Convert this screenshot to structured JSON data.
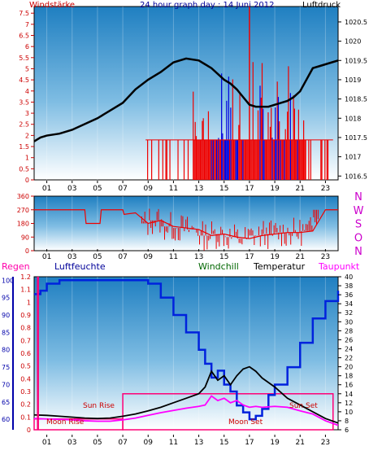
{
  "colors": {
    "wind": "#ee0000",
    "gust_blue": "#0000dd",
    "pressure": "#000000",
    "humidity": "#0022dd",
    "temperature": "#000000",
    "dewpoint": "#ff00ff",
    "windchill": "#006600",
    "rain": "#ff0077",
    "axis_red": "#cc0000",
    "axis_blue": "#0000aa",
    "bg_top": "#1f7fc1",
    "bg_bottom": "#ffffff"
  },
  "labels": {
    "title": "24 hour graph day : 14 Juni 2012",
    "windstaerke": "Windstärke",
    "luftdruck": "Luftdruck",
    "regen": "Regen",
    "luftfeuchte": "Luftfeuchte",
    "windchill": "Windchill",
    "temperatur": "Temperatur",
    "taupunkt": "Taupunkt",
    "sun_rise": "Sun Rise",
    "sun_set": "Sun Set",
    "moon_rise": "Moon Rise",
    "moon_set": "Moon Set",
    "compass": [
      "N",
      "W",
      "S",
      "O",
      "N"
    ]
  },
  "chart_data": [
    {
      "id": "wind-pressure",
      "type": "line",
      "x_ticks": [
        "01",
        "03",
        "05",
        "07",
        "09",
        "11",
        "13",
        "15",
        "17",
        "19",
        "21",
        "23"
      ],
      "y_left": {
        "label": "Windstärke",
        "ticks": [
          "0",
          "0.5",
          "1",
          "1.5",
          "2",
          "2.5",
          "3",
          "3.5",
          "4",
          "4.5",
          "5",
          "5.5",
          "6",
          "6.5",
          "7",
          "7.5"
        ],
        "ylim": [
          0,
          7.8
        ]
      },
      "y_right": {
        "label": "Luftdruck",
        "ticks": [
          "1016.5",
          "1017",
          "1017.5",
          "1018",
          "1018.5",
          "1019",
          "1019.5",
          "1020",
          "1020.5"
        ],
        "ylim": [
          1016.4,
          1020.9
        ]
      },
      "series": [
        {
          "name": "Luftdruck",
          "axis": "right",
          "x": [
            0,
            0.5,
            1,
            2,
            3,
            4,
            5,
            6,
            7,
            8,
            9,
            10,
            11,
            12,
            13,
            13.5,
            14,
            14.5,
            15,
            15.5,
            16,
            16.5,
            17,
            17.5,
            18,
            18.5,
            19,
            19.5,
            20,
            20.5,
            21,
            21.5,
            22,
            22.5,
            23,
            23.5,
            24
          ],
          "y": [
            1017.4,
            1017.5,
            1017.55,
            1017.6,
            1017.7,
            1017.85,
            1018.0,
            1018.2,
            1018.4,
            1018.75,
            1019.0,
            1019.2,
            1019.45,
            1019.55,
            1019.5,
            1019.4,
            1019.3,
            1019.15,
            1019.0,
            1018.9,
            1018.75,
            1018.55,
            1018.35,
            1018.3,
            1018.3,
            1018.3,
            1018.35,
            1018.4,
            1018.45,
            1018.55,
            1018.7,
            1019.0,
            1019.3,
            1019.35,
            1019.4,
            1019.45,
            1019.5
          ]
        }
      ],
      "wind_activity": {
        "start": 8.8,
        "end": 23.6,
        "dense_start": 12.5,
        "dense_end": 21.5,
        "typical": 1.8,
        "peak_x": 17,
        "peak_y": 7.8
      }
    },
    {
      "id": "wind-direction",
      "type": "line",
      "x_ticks": [
        "01",
        "03",
        "05",
        "07",
        "09",
        "11",
        "13",
        "15",
        "17",
        "19",
        "21",
        "23"
      ],
      "y_left": {
        "ticks": [
          "0",
          "90",
          "180",
          "270",
          "360"
        ],
        "ylim": [
          0,
          360
        ]
      },
      "y_right": {
        "ticks": [
          "N",
          "W",
          "S",
          "O",
          "N"
        ]
      },
      "series": [
        {
          "name": "Windrichtung",
          "x": [
            0,
            4,
            4.1,
            5.2,
            5.3,
            7,
            7.1,
            8,
            9,
            10,
            11,
            12,
            13,
            14,
            15,
            16,
            17,
            18,
            19,
            20,
            21,
            22,
            23,
            24
          ],
          "y": [
            270,
            270,
            180,
            180,
            270,
            270,
            240,
            250,
            180,
            200,
            160,
            150,
            140,
            100,
            110,
            90,
            80,
            100,
            110,
            120,
            120,
            130,
            270,
            270
          ]
        }
      ]
    },
    {
      "id": "temp-humidity",
      "type": "line",
      "x_ticks": [
        "01",
        "03",
        "05",
        "07",
        "09",
        "11",
        "13",
        "15",
        "17",
        "19",
        "21",
        "23"
      ],
      "y_left_rain": {
        "label": "Regen",
        "ticks": [
          "0",
          "0.1",
          "0.2",
          "0.3",
          "0.4",
          "0.5",
          "0.6",
          "0.7",
          "0.8",
          "0.9",
          "1",
          "1.1",
          "1.2"
        ],
        "ylim": [
          0,
          1.2
        ]
      },
      "y_left_humidity": {
        "label": "Luftfeuchte",
        "ticks": [
          "60",
          "65",
          "70",
          "75",
          "80",
          "85",
          "90",
          "95",
          "100"
        ],
        "ylim": [
          57,
          101
        ]
      },
      "y_right": {
        "label": "Temperatur",
        "ticks": [
          "6",
          "8",
          "10",
          "12",
          "14",
          "16",
          "18",
          "20",
          "22",
          "24",
          "26",
          "28",
          "30",
          "32",
          "34",
          "36",
          "38",
          "40"
        ],
        "ylim": [
          6,
          40
        ]
      },
      "series": [
        {
          "name": "Luftfeuchte",
          "axis": "humidity",
          "x": [
            0,
            0.5,
            1,
            2,
            3,
            4,
            5,
            6,
            7,
            8,
            9,
            10,
            11,
            12,
            13,
            13.5,
            14,
            14.5,
            15,
            15.5,
            16,
            16.5,
            17,
            17.5,
            18,
            18.5,
            19,
            20,
            21,
            22,
            23,
            24
          ],
          "y": [
            96,
            97,
            99,
            100,
            100,
            100,
            100,
            100,
            100,
            100,
            99,
            95,
            90,
            85,
            80,
            76,
            72,
            74,
            70,
            68,
            64,
            62,
            60,
            61,
            63,
            67,
            70,
            75,
            82,
            89,
            94,
            97
          ]
        },
        {
          "name": "Temperatur",
          "axis": "temp",
          "x": [
            0,
            1,
            2,
            3,
            4,
            5,
            6,
            7,
            8,
            9,
            10,
            11,
            12,
            13,
            13.5,
            14,
            14.5,
            15,
            15.5,
            16,
            16.5,
            17,
            17.5,
            18,
            19,
            20,
            21,
            22,
            23,
            24
          ],
          "y": [
            9.3,
            9.2,
            9.0,
            8.8,
            8.6,
            8.5,
            8.6,
            9.0,
            9.5,
            10.2,
            11.0,
            12.0,
            13.0,
            14.0,
            15.5,
            19.0,
            17.0,
            18.0,
            16.0,
            18.0,
            19.5,
            20.0,
            19.0,
            17.5,
            15.5,
            13.0,
            11.5,
            10.0,
            8.5,
            7.5
          ]
        },
        {
          "name": "Taupunkt",
          "axis": "temp",
          "x": [
            0,
            1,
            2,
            3,
            4,
            5,
            6,
            7,
            8,
            9,
            10,
            11,
            12,
            13,
            13.5,
            14,
            14.5,
            15,
            15.5,
            16,
            16.5,
            17,
            17.5,
            18,
            19,
            20,
            21,
            22,
            23,
            24
          ],
          "y": [
            8.5,
            8.4,
            8.3,
            8.2,
            8.0,
            7.9,
            7.9,
            8.2,
            8.6,
            9.2,
            9.8,
            10.3,
            10.8,
            11.2,
            11.5,
            13.5,
            12.5,
            13.0,
            12.0,
            12.5,
            11.5,
            11.0,
            11.2,
            11.0,
            11.2,
            11.0,
            10.2,
            9.5,
            8.0,
            7.0
          ]
        }
      ],
      "sun_box": {
        "x0": 7,
        "x1": 23.6,
        "y_top": 14
      },
      "moon_box": {
        "x0": 0,
        "x1": 7,
        "y_top": 8.4
      },
      "rain": {
        "x": 0.3,
        "value": 1.2
      }
    }
  ]
}
